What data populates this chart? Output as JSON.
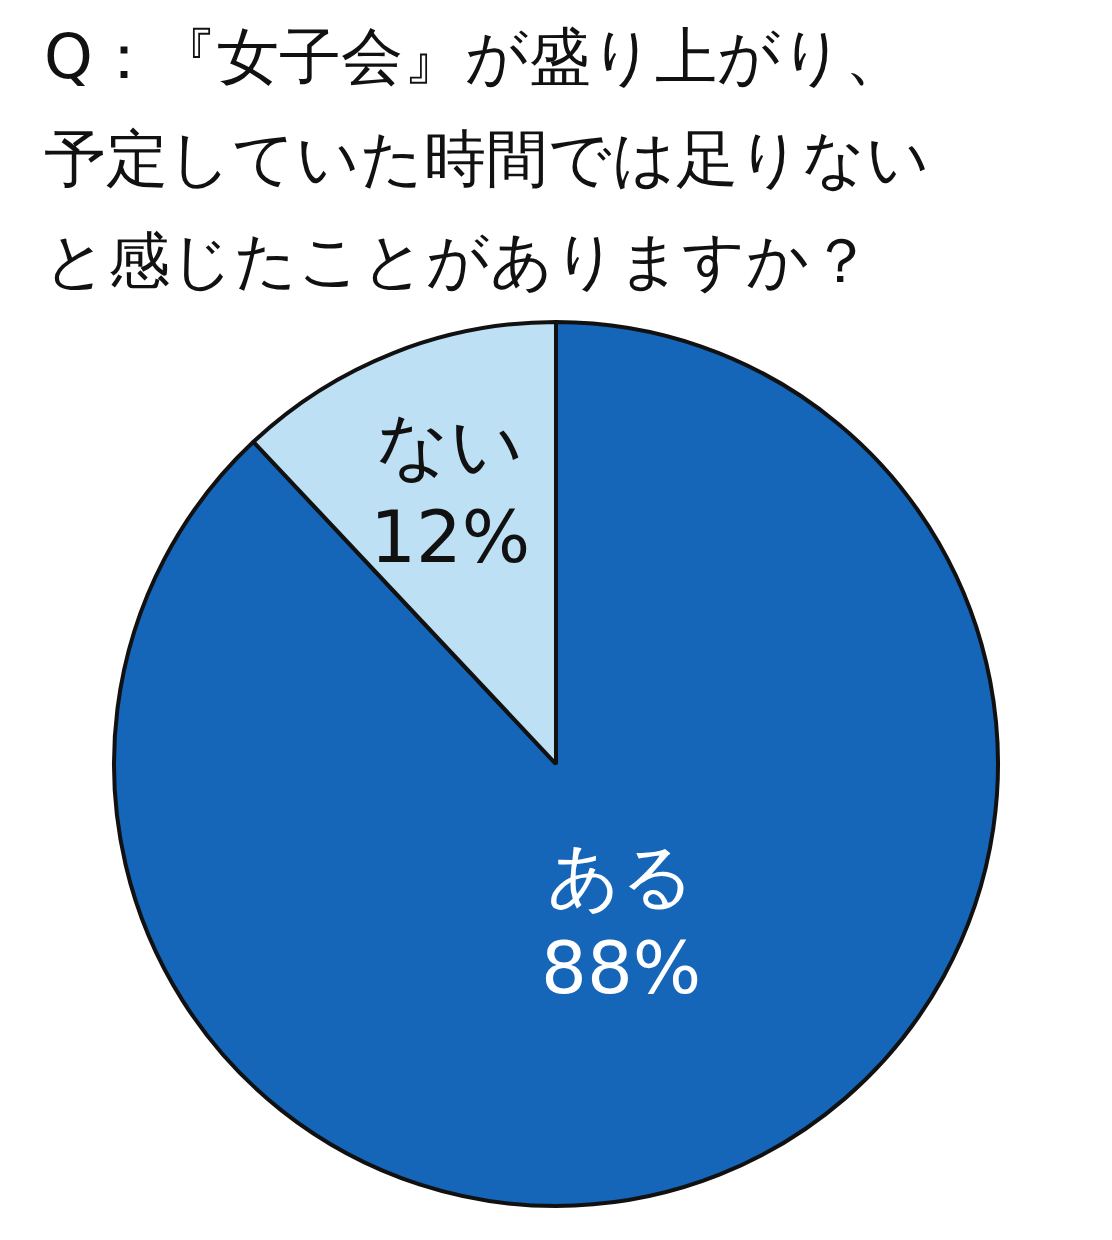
{
  "chart_data": {
    "type": "pie",
    "title": "Q：『女子会』が盛り上がり、予定していた時間では足りないと感じたことがありますか？",
    "categories": [
      "ある",
      "ない"
    ],
    "values": [
      88,
      12
    ],
    "colors": [
      "#1565b8",
      "#bde0f5"
    ],
    "value_labels": [
      "88%",
      "12%"
    ],
    "legend": false
  }
}
